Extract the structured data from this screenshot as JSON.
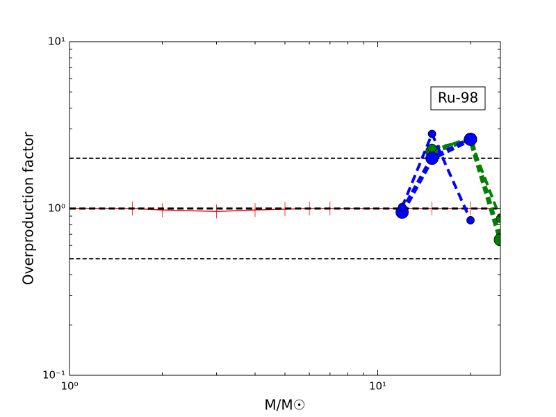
{
  "chart_data": {
    "type": "line",
    "xlabel": "M/M☉",
    "ylabel": "Overproduction factor",
    "annotation": "Ru-98",
    "xscale": "log",
    "yscale": "log",
    "xlim": [
      1,
      25
    ],
    "ylim": [
      0.1,
      10
    ],
    "xticks": [
      {
        "value": 1,
        "label": "10⁰"
      },
      {
        "value": 10,
        "label": "10¹"
      }
    ],
    "yticks": [
      {
        "value": 0.1,
        "label": "10⁻¹"
      },
      {
        "value": 1,
        "label": "10⁰"
      },
      {
        "value": 10,
        "label": "10¹"
      }
    ],
    "xminor_ticks": [
      2,
      3,
      4,
      5,
      6,
      7,
      8,
      9,
      20
    ],
    "yminor_ticks": [
      0.2,
      0.3,
      0.4,
      0.5,
      0.6,
      0.7,
      0.8,
      0.9,
      2,
      3,
      4,
      5,
      6,
      7,
      8,
      9
    ],
    "series": [
      {
        "color": "#ff0000",
        "style": "solid",
        "width": 1.5,
        "marker": "tick",
        "x": [
          1,
          1.6,
          2,
          3,
          4,
          5,
          6,
          7,
          12,
          15,
          20,
          25
        ],
        "values": [
          1.0,
          1.0,
          0.98,
          0.96,
          0.98,
          0.99,
          1.0,
          1.0,
          1.0,
          1.0,
          1.0,
          1.0
        ]
      },
      {
        "color": "#000000",
        "style": "dashed",
        "width": 2,
        "x": [
          1,
          25
        ],
        "values": [
          2,
          2
        ]
      },
      {
        "color": "#000000",
        "style": "dashed",
        "width": 3,
        "x": [
          1,
          25
        ],
        "values": [
          1,
          1
        ]
      },
      {
        "color": "#000000",
        "style": "dashed",
        "width": 2,
        "x": [
          1,
          25
        ],
        "values": [
          0.5,
          0.5
        ]
      },
      {
        "color": "#008000",
        "style": "dotted",
        "width": 7,
        "marker": "circle",
        "size": 9,
        "x": [
          15,
          20,
          25
        ],
        "values": [
          2.2,
          2.6,
          0.65
        ]
      },
      {
        "color": "#008000",
        "style": "dashed",
        "width": 4,
        "marker": "circle",
        "size": 6,
        "x": [
          15,
          20,
          25
        ],
        "values": [
          2.3,
          2.55,
          0.87
        ]
      },
      {
        "color": "#0000ff",
        "style": "dotted",
        "width": 7,
        "marker": "circle",
        "size": 9,
        "x": [
          12,
          15,
          20
        ],
        "values": [
          0.95,
          2.0,
          2.6
        ]
      },
      {
        "color": "#0000ff",
        "style": "dashed",
        "width": 4,
        "marker": "circle",
        "size": 5.5,
        "x": [
          12,
          15,
          20
        ],
        "values": [
          1.02,
          2.8,
          0.85
        ]
      }
    ]
  }
}
